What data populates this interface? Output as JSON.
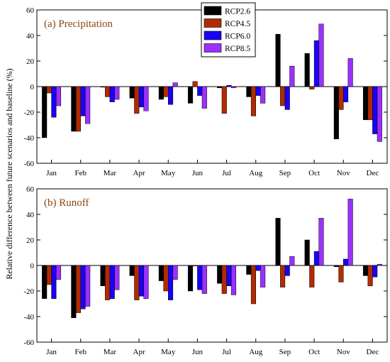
{
  "chart_data": {
    "type": "bar",
    "ylabel": "Relative difference between future scenarios and baseline (%)",
    "categories": [
      "Jan",
      "Feb",
      "Mar",
      "Apr",
      "May",
      "Jun",
      "Jul",
      "Aug",
      "Sep",
      "Oct",
      "Nov",
      "Dec"
    ],
    "legend": {
      "placement": "top-right",
      "entries": [
        {
          "name": "RCP2.6",
          "color": "#000000"
        },
        {
          "name": "RCP4.5",
          "color": "#b22b00"
        },
        {
          "name": "RCP6.0",
          "color": "#1a00f5"
        },
        {
          "name": "RCP8.5",
          "color": "#9b30ff"
        }
      ]
    },
    "panels": [
      {
        "title": "(a) Precipitation",
        "ylim": [
          -60,
          60
        ],
        "yticks": [
          -60,
          -40,
          -20,
          0,
          20,
          40,
          60
        ],
        "series": [
          {
            "name": "RCP2.6",
            "values": [
              -40,
              -35,
              0,
              -9,
              -10,
              -13,
              -1,
              -8,
              41,
              26,
              -41,
              -26
            ]
          },
          {
            "name": "RCP4.5",
            "values": [
              -5,
              -35,
              -8,
              -21,
              -8,
              4,
              -21,
              -23,
              -15,
              -2,
              -18,
              -26
            ]
          },
          {
            "name": "RCP6.0",
            "values": [
              -24,
              -23,
              -12,
              -16,
              -14,
              -7,
              1,
              -7,
              -18,
              36,
              -12,
              -37
            ]
          },
          {
            "name": "RCP8.5",
            "values": [
              -15,
              -29,
              -10,
              -19,
              3,
              -17,
              -1,
              -13,
              16,
              49,
              22,
              -43
            ]
          }
        ]
      },
      {
        "title": "(b) Runoff",
        "ylim": [
          -60,
          60
        ],
        "yticks": [
          -60,
          -40,
          -20,
          0,
          20,
          40,
          60
        ],
        "series": [
          {
            "name": "RCP2.6",
            "values": [
              -26,
              -41,
              -16,
              -8,
              -12,
              -20,
              -14,
              -7,
              37,
              20,
              -1,
              -8
            ]
          },
          {
            "name": "RCP4.5",
            "values": [
              -15,
              -37,
              -27,
              -27,
              -20,
              0,
              -22,
              -30,
              -17,
              -17,
              -13,
              -16
            ]
          },
          {
            "name": "RCP6.0",
            "values": [
              -26,
              -34,
              -26,
              -24,
              -27,
              -19,
              -16,
              -4,
              -8,
              11,
              5,
              -9
            ]
          },
          {
            "name": "RCP8.5",
            "values": [
              -11,
              -32,
              -19,
              -26,
              -11,
              -22,
              -23,
              -17,
              7,
              37,
              52,
              1
            ]
          }
        ]
      }
    ]
  }
}
